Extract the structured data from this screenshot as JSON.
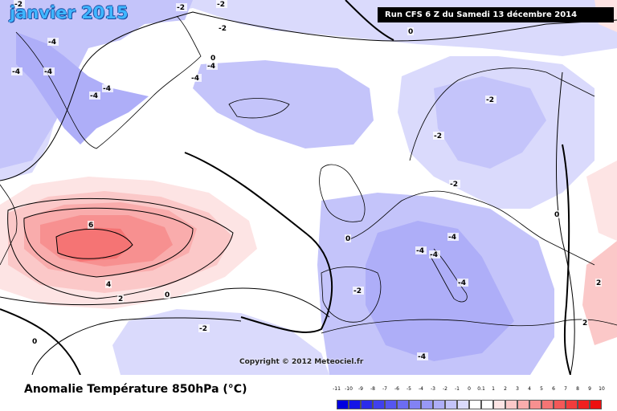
{
  "title": "janvier 2015",
  "run_info": "Run CFS 6 Z du Samedi 13 décembre 2014",
  "copyright": "Copyright © 2012 Meteociel.fr",
  "legend": {
    "title": "Anomalie Température 850hPa (°C)",
    "levels": [
      {
        "label": "-11",
        "color": "#0000e0"
      },
      {
        "label": "-10",
        "color": "#1515e6"
      },
      {
        "label": "-9",
        "color": "#2b2bea"
      },
      {
        "label": "-8",
        "color": "#4040ee"
      },
      {
        "label": "-7",
        "color": "#5656f0"
      },
      {
        "label": "-6",
        "color": "#6c6cf2"
      },
      {
        "label": "-5",
        "color": "#8282f4"
      },
      {
        "label": "-4",
        "color": "#9898f6"
      },
      {
        "label": "-3",
        "color": "#aeaef8"
      },
      {
        "label": "-2",
        "color": "#c4c4fa"
      },
      {
        "label": "-1",
        "color": "#dadafc"
      },
      {
        "label": "0",
        "color": "#ffffff"
      },
      {
        "label": "0.1",
        "color": "#ffffff"
      },
      {
        "label": "1",
        "color": "#fde4e4"
      },
      {
        "label": "2",
        "color": "#fbc8c8"
      },
      {
        "label": "3",
        "color": "#f9acac"
      },
      {
        "label": "4",
        "color": "#f79090"
      },
      {
        "label": "5",
        "color": "#f57474"
      },
      {
        "label": "6",
        "color": "#f35858"
      },
      {
        "label": "7",
        "color": "#f13c3c"
      },
      {
        "label": "8",
        "color": "#ef2020"
      },
      {
        "label": "9",
        "color": "#ed1010"
      },
      {
        "label": "10",
        "color": "#e00000"
      }
    ]
  },
  "contour_labels": [
    {
      "text": "-2"
    },
    {
      "text": "-2"
    },
    {
      "text": "-2"
    },
    {
      "text": "0"
    },
    {
      "text": "-2"
    },
    {
      "text": "-4"
    },
    {
      "text": "-4"
    },
    {
      "text": "-4"
    },
    {
      "text": "-4"
    },
    {
      "text": "-4"
    },
    {
      "text": "-4"
    },
    {
      "text": "-4"
    },
    {
      "text": "0"
    },
    {
      "text": "-2"
    },
    {
      "text": "-2"
    },
    {
      "text": "6"
    },
    {
      "text": "4"
    },
    {
      "text": "2"
    },
    {
      "text": "0"
    },
    {
      "text": "-2"
    },
    {
      "text": "0"
    },
    {
      "text": "-4"
    },
    {
      "text": "-4"
    },
    {
      "text": "-4"
    },
    {
      "text": "-4"
    },
    {
      "text": "-2"
    },
    {
      "text": "-4"
    },
    {
      "text": "0"
    },
    {
      "text": "2"
    },
    {
      "text": "2"
    },
    {
      "text": "0"
    },
    {
      "text": "-2"
    }
  ]
}
